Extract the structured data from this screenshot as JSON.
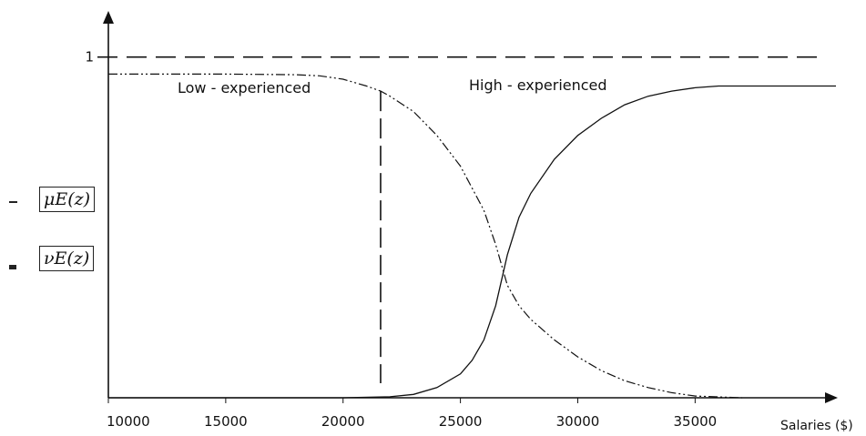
{
  "chart_data": {
    "type": "line",
    "region_labels": {
      "low": "Low - experienced",
      "high": "High - experienced"
    },
    "xlabel": "Salaries ($)",
    "x_ticks": [
      10000,
      15000,
      20000,
      25000,
      30000,
      35000
    ],
    "xlim": [
      10000,
      41000
    ],
    "ylim": [
      0,
      1.13
    ],
    "y_tick_label": "1",
    "upper_bound": 1,
    "threshold_x": 21600,
    "grid": false,
    "legend": [
      {
        "label": "μE(z)",
        "style": "solid"
      },
      {
        "label": "νE(z)",
        "style": "dash-dot"
      }
    ],
    "series": [
      {
        "name": "μE(z)",
        "style": "solid",
        "x": [
          10000,
          15000,
          20000,
          22000,
          23000,
          24000,
          25000,
          25500,
          26000,
          26500,
          27000,
          27500,
          28000,
          29000,
          30000,
          31000,
          32000,
          33000,
          34000,
          35000,
          36000,
          38000,
          41000
        ],
        "y": [
          0,
          0,
          0,
          0.003,
          0.01,
          0.03,
          0.07,
          0.11,
          0.17,
          0.27,
          0.42,
          0.53,
          0.6,
          0.7,
          0.77,
          0.82,
          0.86,
          0.885,
          0.9,
          0.91,
          0.915,
          0.915,
          0.915
        ]
      },
      {
        "name": "νE(z)",
        "style": "dash-dot",
        "x": [
          10000,
          15000,
          18000,
          19000,
          20000,
          21000,
          21600,
          22000,
          23000,
          24000,
          25000,
          26000,
          26500,
          27000,
          27500,
          28000,
          29000,
          30000,
          31000,
          32000,
          33000,
          34000,
          35000,
          37000
        ],
        "y": [
          0.95,
          0.95,
          0.948,
          0.945,
          0.935,
          0.915,
          0.9,
          0.885,
          0.84,
          0.77,
          0.68,
          0.55,
          0.45,
          0.33,
          0.27,
          0.23,
          0.17,
          0.12,
          0.08,
          0.05,
          0.03,
          0.015,
          0.005,
          0
        ]
      }
    ]
  }
}
